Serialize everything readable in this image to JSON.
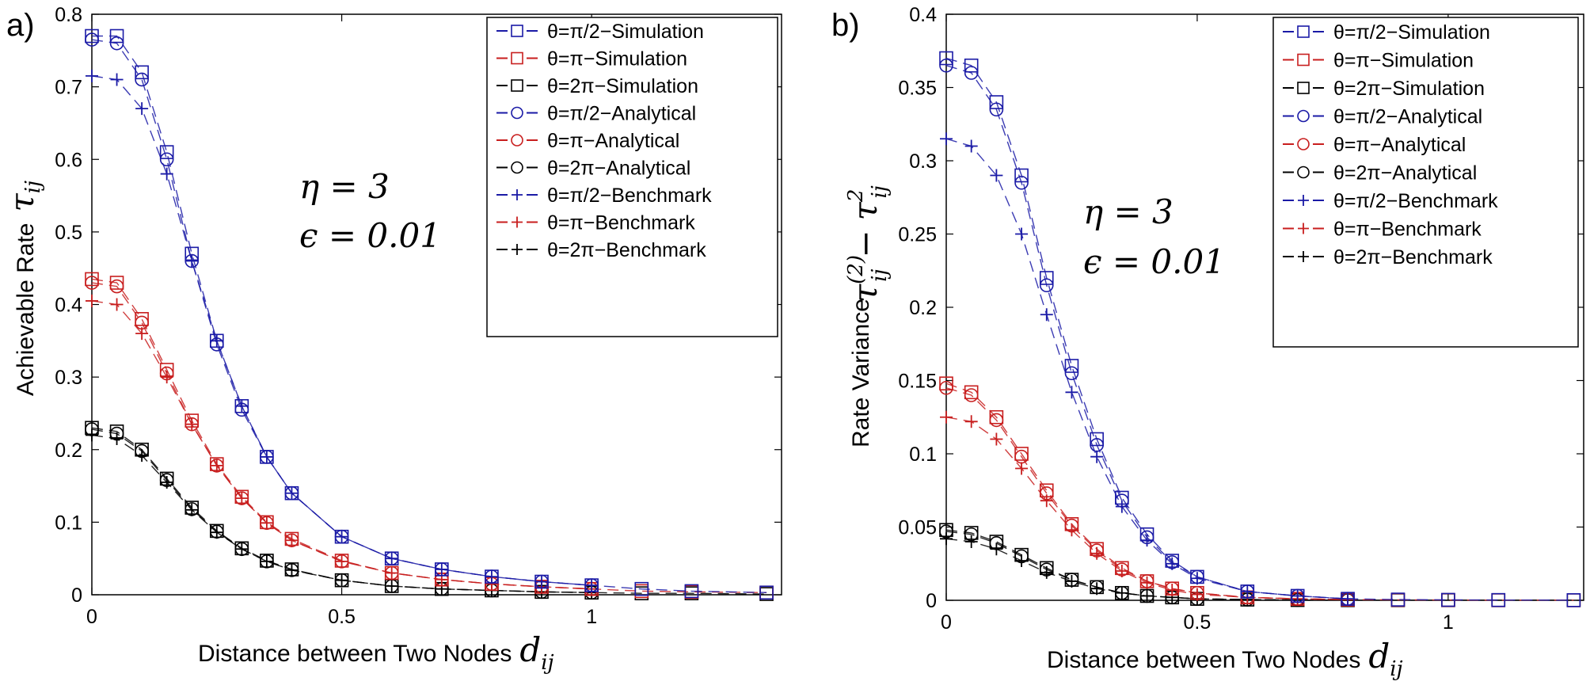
{
  "chart_data": [
    {
      "panel_label": "a)",
      "type": "line",
      "ylabel": "Achievable Rate",
      "ylabel_symbol": "τ",
      "ylabel_sub": "ij",
      "xlabel": "Distance between Two Nodes",
      "xlabel_symbol": "d",
      "xlabel_sub": "ij",
      "xlim": [
        0,
        1.38
      ],
      "ylim": [
        0,
        0.8
      ],
      "xticks": [
        0,
        0.5,
        1
      ],
      "xtick_labels": [
        "0",
        "0.5",
        "1"
      ],
      "yticks": [
        0,
        0.1,
        0.2,
        0.3,
        0.4,
        0.5,
        0.6,
        0.7,
        0.8
      ],
      "ytick_labels": [
        "0",
        "0.1",
        "0.2",
        "0.3",
        "0.4",
        "0.5",
        "0.6",
        "0.7",
        "0.8"
      ],
      "annotations": [
        "η = 3",
        "ϵ = 0.01"
      ],
      "legend": [
        "θ=π/2−Simulation",
        "θ=π−Simulation",
        "θ=2π−Simulation",
        "θ=π/2−Analytical",
        "θ=π−Analytical",
        "θ=2π−Analytical",
        "θ=π/2−Benchmark",
        "θ=π−Benchmark",
        "θ=2π−Benchmark"
      ],
      "series": [
        {
          "name": "θ=π/2−Simulation",
          "color": "#1a1aa6",
          "marker": "square",
          "x": [
            0,
            0.05,
            0.1,
            0.15,
            0.2,
            0.25,
            0.3,
            0.35,
            0.4,
            0.5,
            0.6,
            0.7,
            0.8,
            0.9,
            1.0,
            1.1,
            1.2,
            1.35
          ],
          "values": [
            0.77,
            0.77,
            0.72,
            0.61,
            0.47,
            0.35,
            0.26,
            0.19,
            0.14,
            0.08,
            0.05,
            0.035,
            0.025,
            0.018,
            0.013,
            0.008,
            0.005,
            0.003
          ]
        },
        {
          "name": "θ=π−Simulation",
          "color": "#c81e1e",
          "marker": "square",
          "x": [
            0,
            0.05,
            0.1,
            0.15,
            0.2,
            0.25,
            0.3,
            0.35,
            0.4,
            0.5,
            0.6,
            0.7,
            0.8,
            0.9,
            1.0,
            1.1,
            1.2,
            1.35
          ],
          "values": [
            0.435,
            0.43,
            0.38,
            0.31,
            0.24,
            0.18,
            0.135,
            0.1,
            0.077,
            0.047,
            0.03,
            0.021,
            0.015,
            0.011,
            0.008,
            0.005,
            0.004,
            0.003
          ]
        },
        {
          "name": "θ=2π−Simulation",
          "color": "#000000",
          "marker": "square",
          "x": [
            0,
            0.05,
            0.1,
            0.15,
            0.2,
            0.25,
            0.3,
            0.35,
            0.4,
            0.5,
            0.6,
            0.7,
            0.8,
            0.9,
            1.0,
            1.1,
            1.2,
            1.35
          ],
          "values": [
            0.23,
            0.225,
            0.2,
            0.16,
            0.12,
            0.088,
            0.064,
            0.047,
            0.035,
            0.02,
            0.012,
            0.008,
            0.006,
            0.004,
            0.003,
            0.002,
            0.002,
            0.001
          ]
        },
        {
          "name": "θ=π/2−Analytical",
          "color": "#1a1aa6",
          "marker": "circle",
          "x": [
            0,
            0.05,
            0.1,
            0.15,
            0.2,
            0.25,
            0.3,
            0.35,
            0.4,
            0.5,
            0.6,
            0.7,
            0.8,
            0.9,
            1.0
          ],
          "values": [
            0.765,
            0.76,
            0.71,
            0.6,
            0.46,
            0.345,
            0.255,
            0.19,
            0.14,
            0.08,
            0.05,
            0.035,
            0.025,
            0.018,
            0.013
          ]
        },
        {
          "name": "θ=π−Analytical",
          "color": "#c81e1e",
          "marker": "circle",
          "x": [
            0,
            0.05,
            0.1,
            0.15,
            0.2,
            0.25,
            0.3,
            0.35,
            0.4,
            0.5,
            0.6,
            0.7,
            0.8,
            0.9,
            1.0
          ],
          "values": [
            0.43,
            0.425,
            0.375,
            0.305,
            0.235,
            0.178,
            0.133,
            0.099,
            0.075,
            0.046,
            0.03,
            0.021,
            0.015,
            0.011,
            0.008
          ]
        },
        {
          "name": "θ=2π−Analytical",
          "color": "#000000",
          "marker": "circle",
          "x": [
            0,
            0.05,
            0.1,
            0.15,
            0.2,
            0.25,
            0.3,
            0.35,
            0.4,
            0.5,
            0.6,
            0.7,
            0.8,
            0.9,
            1.0
          ],
          "values": [
            0.228,
            0.222,
            0.198,
            0.158,
            0.118,
            0.087,
            0.063,
            0.046,
            0.034,
            0.02,
            0.012,
            0.008,
            0.006,
            0.004,
            0.003
          ]
        },
        {
          "name": "θ=π/2−Benchmark",
          "color": "#1a1aa6",
          "marker": "plus",
          "x": [
            0,
            0.05,
            0.1,
            0.15,
            0.2,
            0.25,
            0.3,
            0.35,
            0.4,
            0.5,
            0.6,
            0.7,
            0.8,
            0.9,
            1.0
          ],
          "values": [
            0.715,
            0.71,
            0.67,
            0.58,
            0.46,
            0.35,
            0.26,
            0.19,
            0.14,
            0.08,
            0.05,
            0.035,
            0.025,
            0.018,
            0.013
          ]
        },
        {
          "name": "θ=π−Benchmark",
          "color": "#c81e1e",
          "marker": "plus",
          "x": [
            0,
            0.05,
            0.1,
            0.15,
            0.2,
            0.25,
            0.3,
            0.35,
            0.4,
            0.5,
            0.6,
            0.7,
            0.8,
            0.9,
            1.0
          ],
          "values": [
            0.405,
            0.4,
            0.36,
            0.3,
            0.235,
            0.178,
            0.133,
            0.099,
            0.075,
            0.046,
            0.03,
            0.021,
            0.015,
            0.011,
            0.008
          ]
        },
        {
          "name": "θ=2π−Benchmark",
          "color": "#000000",
          "marker": "plus",
          "x": [
            0,
            0.05,
            0.1,
            0.15,
            0.2,
            0.25,
            0.3,
            0.35,
            0.4,
            0.5,
            0.6,
            0.7,
            0.8,
            0.9,
            1.0
          ],
          "values": [
            0.22,
            0.215,
            0.192,
            0.155,
            0.117,
            0.086,
            0.063,
            0.046,
            0.034,
            0.02,
            0.012,
            0.008,
            0.006,
            0.004,
            0.003
          ]
        }
      ]
    },
    {
      "panel_label": "b)",
      "type": "line",
      "ylabel": "Rate Variance",
      "ylabel_expr": "τ(2)ij − τ2ij",
      "xlabel": "Distance between Two Nodes",
      "xlabel_symbol": "d",
      "xlabel_sub": "ij",
      "xlim": [
        0,
        1.27
      ],
      "ylim": [
        0,
        0.4
      ],
      "xticks": [
        0,
        0.5,
        1
      ],
      "xtick_labels": [
        "0",
        "0.5",
        "1"
      ],
      "yticks": [
        0,
        0.05,
        0.1,
        0.15,
        0.2,
        0.25,
        0.3,
        0.35,
        0.4
      ],
      "ytick_labels": [
        "0",
        "0.05",
        "0.1",
        "0.15",
        "0.2",
        "0.25",
        "0.3",
        "0.35",
        "0.4"
      ],
      "annotations": [
        "η = 3",
        "ϵ = 0.01"
      ],
      "legend": [
        "θ=π/2−Simulation",
        "θ=π−Simulation",
        "θ=2π−Simulation",
        "θ=π/2−Analytical",
        "θ=π−Analytical",
        "θ=2π−Analytical",
        "θ=π/2−Benchmark",
        "θ=π−Benchmark",
        "θ=2π−Benchmark"
      ],
      "series": [
        {
          "name": "θ=π/2−Simulation",
          "color": "#1a1aa6",
          "marker": "square",
          "x": [
            0,
            0.05,
            0.1,
            0.15,
            0.2,
            0.25,
            0.3,
            0.35,
            0.4,
            0.45,
            0.5,
            0.6,
            0.7,
            0.8,
            0.9,
            1.0,
            1.1,
            1.25
          ],
          "values": [
            0.37,
            0.365,
            0.34,
            0.29,
            0.22,
            0.16,
            0.11,
            0.07,
            0.045,
            0.027,
            0.016,
            0.006,
            0.003,
            0.001,
            0.0005,
            0.0003,
            0.0002,
            0.0001
          ]
        },
        {
          "name": "θ=π−Simulation",
          "color": "#c81e1e",
          "marker": "square",
          "x": [
            0,
            0.05,
            0.1,
            0.15,
            0.2,
            0.25,
            0.3,
            0.35,
            0.4,
            0.45,
            0.5,
            0.6,
            0.7,
            0.8,
            0.9,
            1.0,
            1.1,
            1.25
          ],
          "values": [
            0.148,
            0.142,
            0.125,
            0.1,
            0.075,
            0.052,
            0.035,
            0.022,
            0.013,
            0.008,
            0.005,
            0.002,
            0.001,
            0.0005,
            0.0003,
            0.0002,
            0.0001,
            0.0001
          ]
        },
        {
          "name": "θ=2π−Simulation",
          "color": "#000000",
          "marker": "square",
          "x": [
            0,
            0.05,
            0.1,
            0.15,
            0.2,
            0.25,
            0.3,
            0.35,
            0.4,
            0.45,
            0.5,
            0.6,
            0.7,
            0.8,
            0.9,
            1.0,
            1.1,
            1.25
          ],
          "values": [
            0.048,
            0.046,
            0.04,
            0.031,
            0.022,
            0.014,
            0.009,
            0.005,
            0.003,
            0.002,
            0.001,
            0.0005,
            0.0002,
            0.0001,
            0.0001,
            0.0001,
            0.0001,
            0.0001
          ]
        },
        {
          "name": "θ=π/2−Analytical",
          "color": "#1a1aa6",
          "marker": "circle",
          "x": [
            0,
            0.05,
            0.1,
            0.15,
            0.2,
            0.25,
            0.3,
            0.35,
            0.4,
            0.45,
            0.5,
            0.6,
            0.7,
            0.8
          ],
          "values": [
            0.365,
            0.36,
            0.335,
            0.285,
            0.215,
            0.155,
            0.106,
            0.068,
            0.043,
            0.026,
            0.016,
            0.006,
            0.003,
            0.001
          ]
        },
        {
          "name": "θ=π−Analytical",
          "color": "#c81e1e",
          "marker": "circle",
          "x": [
            0,
            0.05,
            0.1,
            0.15,
            0.2,
            0.25,
            0.3,
            0.35,
            0.4,
            0.45,
            0.5,
            0.6,
            0.7,
            0.8
          ],
          "values": [
            0.145,
            0.14,
            0.123,
            0.098,
            0.073,
            0.051,
            0.034,
            0.021,
            0.013,
            0.008,
            0.005,
            0.002,
            0.001,
            0.0005
          ]
        },
        {
          "name": "θ=2π−Analytical",
          "color": "#000000",
          "marker": "circle",
          "x": [
            0,
            0.05,
            0.1,
            0.15,
            0.2,
            0.25,
            0.3,
            0.35,
            0.4,
            0.45,
            0.5,
            0.6,
            0.7,
            0.8
          ],
          "values": [
            0.047,
            0.045,
            0.039,
            0.03,
            0.021,
            0.014,
            0.009,
            0.005,
            0.003,
            0.002,
            0.001,
            0.0005,
            0.0002,
            0.0001
          ]
        },
        {
          "name": "θ=π/2−Benchmark",
          "color": "#1a1aa6",
          "marker": "plus",
          "x": [
            0,
            0.05,
            0.1,
            0.15,
            0.2,
            0.25,
            0.3,
            0.35,
            0.4,
            0.45,
            0.5,
            0.6,
            0.7,
            0.8
          ],
          "values": [
            0.315,
            0.31,
            0.29,
            0.25,
            0.195,
            0.142,
            0.098,
            0.064,
            0.041,
            0.025,
            0.015,
            0.006,
            0.003,
            0.001
          ]
        },
        {
          "name": "θ=π−Benchmark",
          "color": "#c81e1e",
          "marker": "plus",
          "x": [
            0,
            0.05,
            0.1,
            0.15,
            0.2,
            0.25,
            0.3,
            0.35,
            0.4,
            0.45,
            0.5,
            0.6,
            0.7,
            0.8
          ],
          "values": [
            0.125,
            0.122,
            0.11,
            0.09,
            0.068,
            0.048,
            0.032,
            0.02,
            0.012,
            0.007,
            0.004,
            0.002,
            0.001,
            0.0005
          ]
        },
        {
          "name": "θ=2π−Benchmark",
          "color": "#000000",
          "marker": "plus",
          "x": [
            0,
            0.05,
            0.1,
            0.15,
            0.2,
            0.25,
            0.3,
            0.35,
            0.4,
            0.45,
            0.5,
            0.6,
            0.7,
            0.8
          ],
          "values": [
            0.042,
            0.04,
            0.035,
            0.027,
            0.019,
            0.013,
            0.008,
            0.005,
            0.003,
            0.002,
            0.001,
            0.0005,
            0.0002,
            0.0001
          ]
        }
      ]
    }
  ]
}
